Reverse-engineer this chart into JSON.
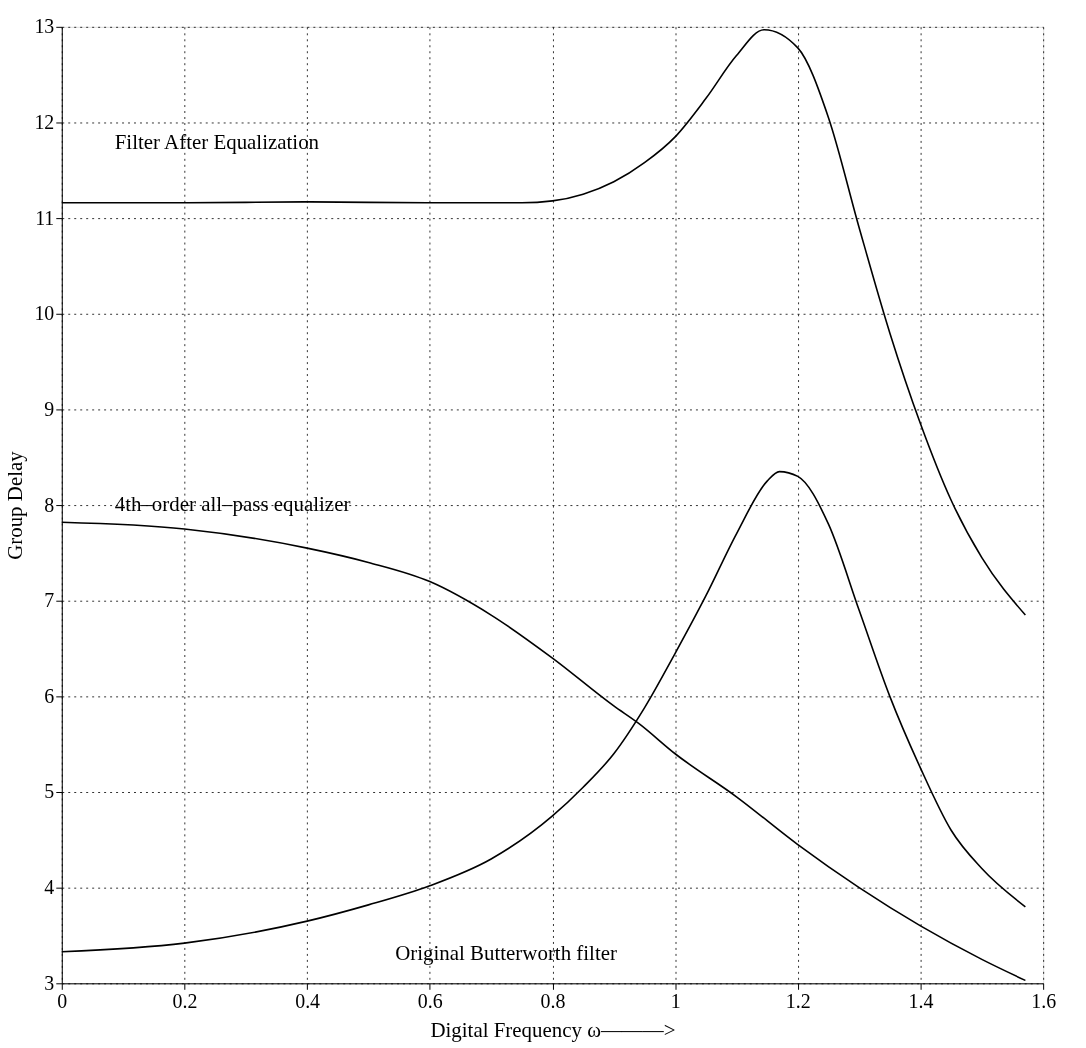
{
  "chart_data": {
    "type": "line",
    "xlabel": "Digital Frequency ω———>",
    "ylabel": "Group Delay",
    "xlim": [
      0,
      1.6
    ],
    "xticks": [
      0,
      0.2,
      0.4,
      0.6,
      0.8,
      1,
      1.2,
      1.4,
      1.6
    ],
    "ylim": [
      3,
      13
    ],
    "yticks": [
      3,
      4,
      5,
      6,
      7,
      8,
      9,
      10,
      11,
      12,
      13
    ],
    "grid": true,
    "line_style": "solid",
    "marker": "none",
    "series": [
      {
        "name": "Filter After Equalization",
        "color": "#000000",
        "x": [
          0,
          0.2,
          0.4,
          0.6,
          0.75,
          0.8,
          0.85,
          0.9,
          0.95,
          1.0,
          1.05,
          1.1,
          1.145,
          1.2,
          1.25,
          1.3,
          1.35,
          1.4,
          1.45,
          1.5,
          1.571
        ],
        "values": [
          11.16,
          11.16,
          11.17,
          11.16,
          11.16,
          11.18,
          11.25,
          11.38,
          11.58,
          11.85,
          12.25,
          12.7,
          12.97,
          12.78,
          12.05,
          10.9,
          9.8,
          8.85,
          8.05,
          7.45,
          6.85
        ]
      },
      {
        "name": "4th–order all–pass equalizer",
        "color": "#000000",
        "x": [
          0,
          0.2,
          0.4,
          0.5,
          0.6,
          0.7,
          0.8,
          0.9,
          0.94,
          1.0,
          1.1,
          1.2,
          1.3,
          1.4,
          1.5,
          1.571
        ],
        "values": [
          7.82,
          7.75,
          7.55,
          7.4,
          7.2,
          6.85,
          6.4,
          5.9,
          5.72,
          5.4,
          4.95,
          4.45,
          4.0,
          3.6,
          3.25,
          3.03
        ]
      },
      {
        "name": "Original Butterworth filter",
        "color": "#000000",
        "x": [
          0,
          0.2,
          0.4,
          0.5,
          0.6,
          0.7,
          0.8,
          0.85,
          0.9,
          0.95,
          1.0,
          1.05,
          1.1,
          1.15,
          1.17,
          1.2,
          1.25,
          1.3,
          1.35,
          1.4,
          1.45,
          1.5,
          1.571
        ],
        "values": [
          3.33,
          3.42,
          3.65,
          3.82,
          4.02,
          4.3,
          4.75,
          5.05,
          5.4,
          5.88,
          6.45,
          7.05,
          7.7,
          8.25,
          8.35,
          8.3,
          7.8,
          6.9,
          6.0,
          5.25,
          4.6,
          4.2,
          3.8
        ]
      }
    ]
  }
}
